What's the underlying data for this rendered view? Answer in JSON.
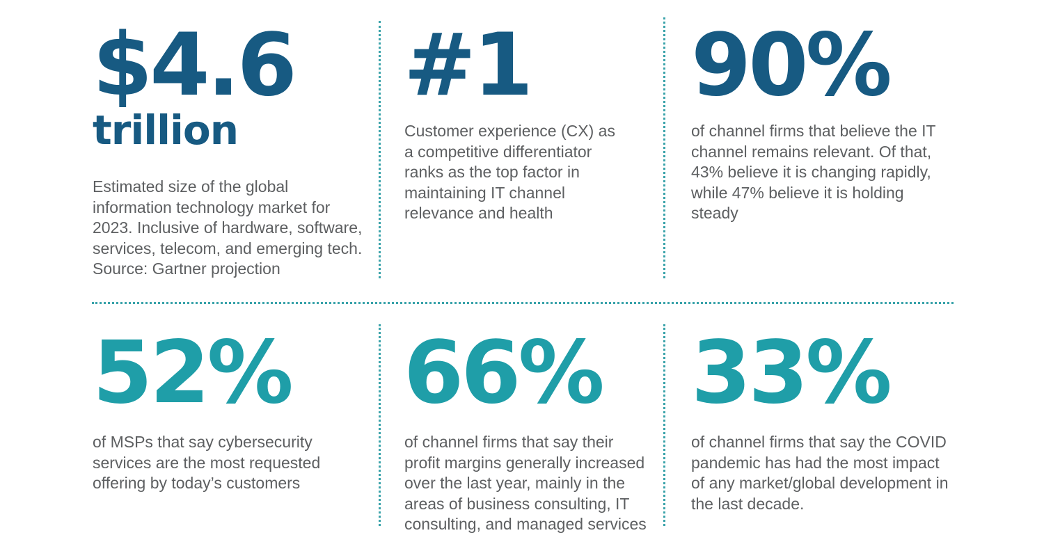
{
  "stats": [
    {
      "value": "$4.6",
      "unit": "trillion",
      "description": "Estimated size of the global\ninformation technology market for\n2023. Inclusive of hardware, software,\nservices, telecom, and emerging tech.\nSource: Gartner projection",
      "color": "#175a82"
    },
    {
      "value": "#1",
      "description": "Customer experience (CX) as\na competitive differentiator\nranks as the top factor in\nmaintaining IT channel\nrelevance and health",
      "color": "#175a82"
    },
    {
      "value": "90%",
      "description": "of channel firms that believe the IT\nchannel remains relevant. Of that,\n43% believe it is changing rapidly,\nwhile 47% believe it is holding\nsteady",
      "color": "#175a82"
    },
    {
      "value": "52%",
      "description": "of MSPs that say cybersecurity\nservices are the most requested\noffering by today’s customers",
      "color": "#1f9ea8"
    },
    {
      "value": "66%",
      "description": "of channel firms that say their\nprofit margins generally increased\nover the last year, mainly in the\nareas of business consulting, IT\nconsulting, and managed services",
      "color": "#1f9ea8"
    },
    {
      "value": "33%",
      "description": "of channel firms that say the COVID\npandemic has had the most impact\nof any market/global development in\nthe last decade.",
      "color": "#1f9ea8"
    }
  ],
  "divider_color": "#3aa3aa",
  "text_color": "#5d5f61"
}
